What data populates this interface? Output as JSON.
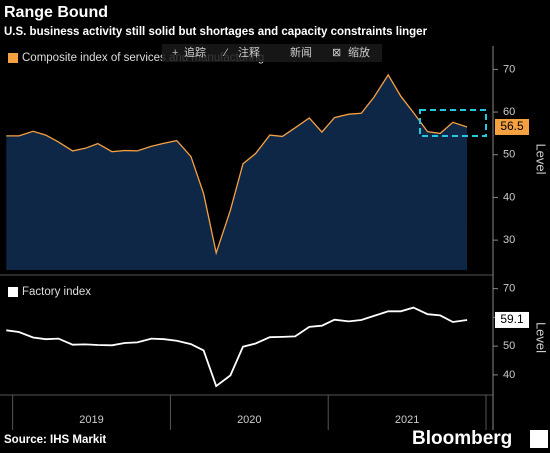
{
  "title": "Range Bound",
  "subtitle": "U.S. business activity still solid but shortages and capacity constraints linger",
  "source": "Source: IHS Markit",
  "brand": "Bloomberg",
  "toolbar": [
    "追踪",
    "注释",
    "新闻",
    "缩放"
  ],
  "chart_data": [
    {
      "type": "area",
      "ylabel": "Level",
      "xlim": [
        2018.92,
        2022.0
      ],
      "ylim": [
        23,
        75
      ],
      "yticks": [
        30,
        40,
        50,
        60,
        70
      ],
      "series": [
        {
          "name": "Composite index of services and manufacturing",
          "color": "#f5a142",
          "fill": "#0f2746",
          "x": [
            2018.96,
            2019.04,
            2019.13,
            2019.21,
            2019.29,
            2019.38,
            2019.46,
            2019.54,
            2019.63,
            2019.71,
            2019.79,
            2019.88,
            2019.96,
            2020.04,
            2020.13,
            2020.21,
            2020.29,
            2020.38,
            2020.46,
            2020.54,
            2020.63,
            2020.71,
            2020.79,
            2020.88,
            2020.96,
            2021.04,
            2021.13,
            2021.21,
            2021.29,
            2021.38,
            2021.46,
            2021.54,
            2021.63,
            2021.71,
            2021.79,
            2021.88
          ],
          "values": [
            54.4,
            54.4,
            55.5,
            54.6,
            53.0,
            50.9,
            51.5,
            52.6,
            50.7,
            51.0,
            50.9,
            52.0,
            52.7,
            53.3,
            49.6,
            40.9,
            27.0,
            37.0,
            47.9,
            50.3,
            54.6,
            54.3,
            56.3,
            58.6,
            55.3,
            58.7,
            59.5,
            59.7,
            63.5,
            68.7,
            63.7,
            59.9,
            55.4,
            55.0,
            57.6,
            56.5
          ]
        }
      ]
    },
    {
      "type": "line",
      "ylabel": "Level",
      "xlim": [
        2018.92,
        2022.0
      ],
      "ylim": [
        33,
        73
      ],
      "yticks": [
        40,
        50,
        60,
        70
      ],
      "xticks": [
        {
          "value": 2019.5,
          "label": "2019"
        },
        {
          "value": 2020.5,
          "label": "2020"
        },
        {
          "value": 2021.5,
          "label": "2021"
        }
      ],
      "series": [
        {
          "name": "Factory index",
          "color": "#ffffff",
          "x": [
            2018.96,
            2019.04,
            2019.13,
            2019.21,
            2019.29,
            2019.38,
            2019.46,
            2019.54,
            2019.63,
            2019.71,
            2019.79,
            2019.88,
            2019.96,
            2020.04,
            2020.13,
            2020.21,
            2020.29,
            2020.38,
            2020.46,
            2020.54,
            2020.63,
            2020.71,
            2020.79,
            2020.88,
            2020.96,
            2021.04,
            2021.13,
            2021.21,
            2021.29,
            2021.38,
            2021.46,
            2021.54,
            2021.63,
            2021.71,
            2021.79,
            2021.88
          ],
          "values": [
            55.5,
            54.9,
            53.0,
            52.4,
            52.6,
            50.5,
            50.6,
            50.4,
            50.3,
            51.1,
            51.3,
            52.6,
            52.4,
            51.9,
            50.7,
            48.5,
            36.1,
            39.8,
            49.8,
            50.9,
            53.1,
            53.2,
            53.4,
            56.7,
            57.1,
            59.2,
            58.6,
            59.1,
            60.5,
            62.1,
            62.1,
            63.4,
            61.1,
            60.7,
            58.4,
            59.1
          ]
        }
      ]
    }
  ]
}
